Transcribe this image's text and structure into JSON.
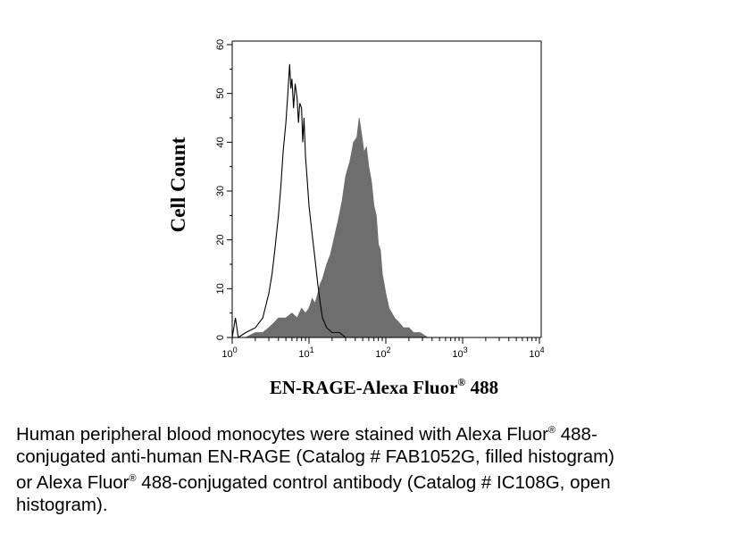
{
  "chart_data": {
    "type": "histogram",
    "xlabel": "EN-RAGE-Alexa Fluor",
    "xlabel_sup": "®",
    "xlabel_tail": "488",
    "ylabel": "Cell Count",
    "x_scale": "log",
    "xlim": [
      1,
      10000
    ],
    "ylim": [
      0,
      60
    ],
    "y_ticks": [
      "0",
      "10",
      "20",
      "30",
      "40",
      "50",
      "60"
    ],
    "x_ticks": [
      {
        "base": "10",
        "exp": "0"
      },
      {
        "base": "10",
        "exp": "1"
      },
      {
        "base": "10",
        "exp": "2"
      },
      {
        "base": "10",
        "exp": "3"
      },
      {
        "base": "10",
        "exp": "4"
      }
    ],
    "series": [
      {
        "style": "filled",
        "color": "#6e6e6e",
        "points": [
          [
            1.0,
            0
          ],
          [
            1.5,
            0
          ],
          [
            2.0,
            1
          ],
          [
            2.5,
            1
          ],
          [
            3.0,
            2
          ],
          [
            3.5,
            3
          ],
          [
            4.0,
            4
          ],
          [
            5.0,
            4
          ],
          [
            6.0,
            5
          ],
          [
            7.0,
            4
          ],
          [
            8.0,
            6
          ],
          [
            9.0,
            5
          ],
          [
            10.0,
            6
          ],
          [
            11.0,
            8
          ],
          [
            12.0,
            7
          ],
          [
            13.0,
            9
          ],
          [
            14.0,
            11
          ],
          [
            15.0,
            12
          ],
          [
            17.0,
            15
          ],
          [
            19.0,
            17
          ],
          [
            21.0,
            20
          ],
          [
            24.0,
            24
          ],
          [
            27.0,
            28
          ],
          [
            30.0,
            33
          ],
          [
            34.0,
            36
          ],
          [
            38.0,
            40
          ],
          [
            42.0,
            41
          ],
          [
            45.0,
            45
          ],
          [
            48.0,
            42
          ],
          [
            52.0,
            38
          ],
          [
            56.0,
            39
          ],
          [
            60.0,
            35
          ],
          [
            65.0,
            32
          ],
          [
            70.0,
            27
          ],
          [
            75.0,
            25
          ],
          [
            80.0,
            19
          ],
          [
            85.0,
            18
          ],
          [
            90.0,
            13
          ],
          [
            95.0,
            11
          ],
          [
            100.0,
            9
          ],
          [
            110.0,
            6
          ],
          [
            120.0,
            5
          ],
          [
            130.0,
            4
          ],
          [
            150.0,
            3
          ],
          [
            170.0,
            2
          ],
          [
            200.0,
            2
          ],
          [
            230.0,
            1
          ],
          [
            280.0,
            1
          ],
          [
            350.0,
            0
          ],
          [
            10000.0,
            0
          ]
        ]
      },
      {
        "style": "open",
        "color": "#000000",
        "points": [
          [
            1.0,
            0
          ],
          [
            1.1,
            4
          ],
          [
            1.2,
            0
          ],
          [
            1.5,
            1
          ],
          [
            2.0,
            2
          ],
          [
            2.5,
            4
          ],
          [
            3.0,
            9
          ],
          [
            3.3,
            13
          ],
          [
            3.6,
            18
          ],
          [
            4.0,
            25
          ],
          [
            4.3,
            31
          ],
          [
            4.6,
            38
          ],
          [
            5.0,
            44
          ],
          [
            5.3,
            50
          ],
          [
            5.6,
            56
          ],
          [
            5.8,
            51
          ],
          [
            6.0,
            53
          ],
          [
            6.3,
            47
          ],
          [
            6.6,
            52
          ],
          [
            7.0,
            49
          ],
          [
            7.3,
            44
          ],
          [
            7.6,
            48
          ],
          [
            8.0,
            47
          ],
          [
            8.3,
            40
          ],
          [
            8.6,
            45
          ],
          [
            9.0,
            37
          ],
          [
            9.5,
            32
          ],
          [
            10.0,
            27
          ],
          [
            11.0,
            21
          ],
          [
            12.0,
            16
          ],
          [
            13.0,
            11
          ],
          [
            14.0,
            7
          ],
          [
            15.0,
            4
          ],
          [
            17.0,
            2
          ],
          [
            20.0,
            1
          ],
          [
            25.0,
            1
          ],
          [
            30.0,
            0
          ],
          [
            10000.0,
            0
          ]
        ]
      }
    ]
  },
  "caption": {
    "line1_a": "Human peripheral blood monocytes were stained with Alexa Fluor",
    "line1_sup": "®",
    "line1_b": " 488-",
    "line2": "conjugated anti-human EN-RAGE (Catalog # FAB1052G, filled histogram)",
    "line3_a": "or Alexa Fluor",
    "line3_sup": "®",
    "line3_b": " 488-conjugated control antibody (Catalog # IC108G, open",
    "line4": "histogram)."
  }
}
